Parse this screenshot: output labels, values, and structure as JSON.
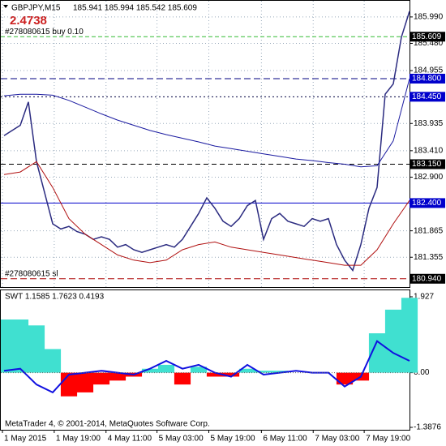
{
  "header": {
    "symbol": "GBPJPY,M15",
    "quotes": "185.941 185.994 185.542 185.609",
    "profit": "2.4738"
  },
  "chart_data": [
    {
      "type": "line",
      "ylim": [
        180.78,
        186.301
      ],
      "yticks": [
        {
          "value": 185.99,
          "label": "185.990"
        },
        {
          "value": 185.48,
          "label": "185.480"
        },
        184.955,
        183.935,
        {
          "value": 183.41,
          "label": "183.410"
        },
        {
          "value": 182.9,
          "label": "182.900"
        },
        181.865,
        181.355
      ],
      "xlim": [
        0,
        505
      ],
      "xticks": [
        {
          "value": 2,
          "label": "1 May 2015"
        },
        {
          "value": 66,
          "label": "1 May 19:00"
        },
        {
          "value": 130,
          "label": "4 May 11:00"
        },
        {
          "value": 193,
          "label": "5 May 03:00"
        },
        {
          "value": 257,
          "label": "5 May 19:00"
        },
        {
          "value": 322,
          "label": "6 May 11:00"
        },
        {
          "value": 386,
          "label": "7 May 03:00"
        },
        {
          "value": 449,
          "label": "7 May 19:00"
        }
      ],
      "grid": true,
      "series": [
        {
          "color": "#2b2b80",
          "width": 1.5,
          "values": [
            183.7,
            183.8,
            183.9,
            184.35,
            183.2,
            182.6,
            182.0,
            181.9,
            181.95,
            181.85,
            181.8,
            181.7,
            181.75,
            181.7,
            181.55,
            181.6,
            181.5,
            181.45,
            181.5,
            181.55,
            181.6,
            181.55,
            181.7,
            181.95,
            182.2,
            182.5,
            182.3,
            182.05,
            181.95,
            182.1,
            182.35,
            182.45,
            181.7,
            182.1,
            182.2,
            182.05,
            182.0,
            181.95,
            182.1,
            182.05,
            182.1,
            181.6,
            181.3,
            181.1,
            181.6,
            182.3,
            182.7,
            184.5,
            184.7,
            185.6,
            186.1
          ]
        },
        {
          "color": "#1a1aa0",
          "width": 1,
          "values": [
            184.47,
            184.5,
            184.5,
            184.48,
            184.38,
            184.25,
            184.12,
            184.0,
            183.9,
            183.8,
            183.72,
            183.65,
            183.58,
            183.5,
            183.45,
            183.4,
            183.35,
            183.3,
            183.25,
            183.22,
            183.18,
            183.15,
            183.1,
            183.12,
            183.6,
            184.8
          ]
        },
        {
          "color": "#b01010",
          "width": 1,
          "values": [
            182.95,
            183.0,
            183.2,
            182.7,
            182.1,
            181.8,
            181.6,
            181.4,
            181.3,
            181.25,
            181.3,
            181.5,
            181.6,
            181.65,
            181.55,
            181.5,
            181.45,
            181.4,
            181.35,
            181.3,
            181.25,
            181.2,
            181.2,
            181.5,
            182.0,
            182.45
          ]
        }
      ],
      "levels": [
        {
          "value": 185.609,
          "color": "#33bb33",
          "dash": "5,3",
          "box": "#000000",
          "note": "#278080615 buy 0.10"
        },
        {
          "value": 184.8,
          "label": "184.800",
          "color": "#000080",
          "dash": "8,4",
          "box": "#0000cc"
        },
        {
          "value": 184.45,
          "label": "184.450",
          "color": "#000040",
          "dash": "2,3",
          "box": "#0000cc"
        },
        {
          "value": 183.15,
          "label": "183.150",
          "color": "#000000",
          "dash": "6,4",
          "box": "#000000"
        },
        {
          "value": 182.4,
          "label": "182.400",
          "color": "#0000cc",
          "dash": "",
          "box": "#0000cc"
        },
        {
          "value": 180.94,
          "label": "180.940",
          "color": "#aa0000",
          "dash": "8,4",
          "box": "#000000",
          "note": "#278080615 sl"
        }
      ]
    },
    {
      "type": "oscillator",
      "title": "SWT 1.1585 1.7623 0.4193",
      "ylim": [
        -1.449,
        2.091
      ],
      "yticks": [
        1.927,
        {
          "value": 0,
          "label": "0.00"
        },
        -1.3876
      ],
      "series": [
        {
          "kind": "histogram",
          "color": "#40e0d0",
          "neg_color": "#ff0000",
          "values": [
            1.35,
            1.35,
            1.2,
            0.6,
            -0.6,
            -0.5,
            -0.3,
            -0.2,
            -0.1,
            0.1,
            0.2,
            -0.3,
            0.15,
            -0.1,
            -0.1,
            0.1,
            0.05,
            0.05,
            0,
            0,
            0,
            -0.3,
            -0.2,
            1.0,
            1.6,
            1.9
          ]
        },
        {
          "kind": "line",
          "color": "#1010e0",
          "values": [
            0.05,
            0.1,
            -0.3,
            -0.5,
            -0.05,
            0,
            0.05,
            0,
            -0.05,
            0.1,
            0.3,
            0.1,
            0.2,
            0,
            -0.1,
            0.2,
            -0.05,
            0,
            0.05,
            0,
            0,
            -0.35,
            -0.1,
            0.8,
            0.5,
            0.3
          ]
        }
      ]
    }
  ],
  "footer": "MetaTrader 4, © 2001-2014, MetaQuotes Software Corp."
}
